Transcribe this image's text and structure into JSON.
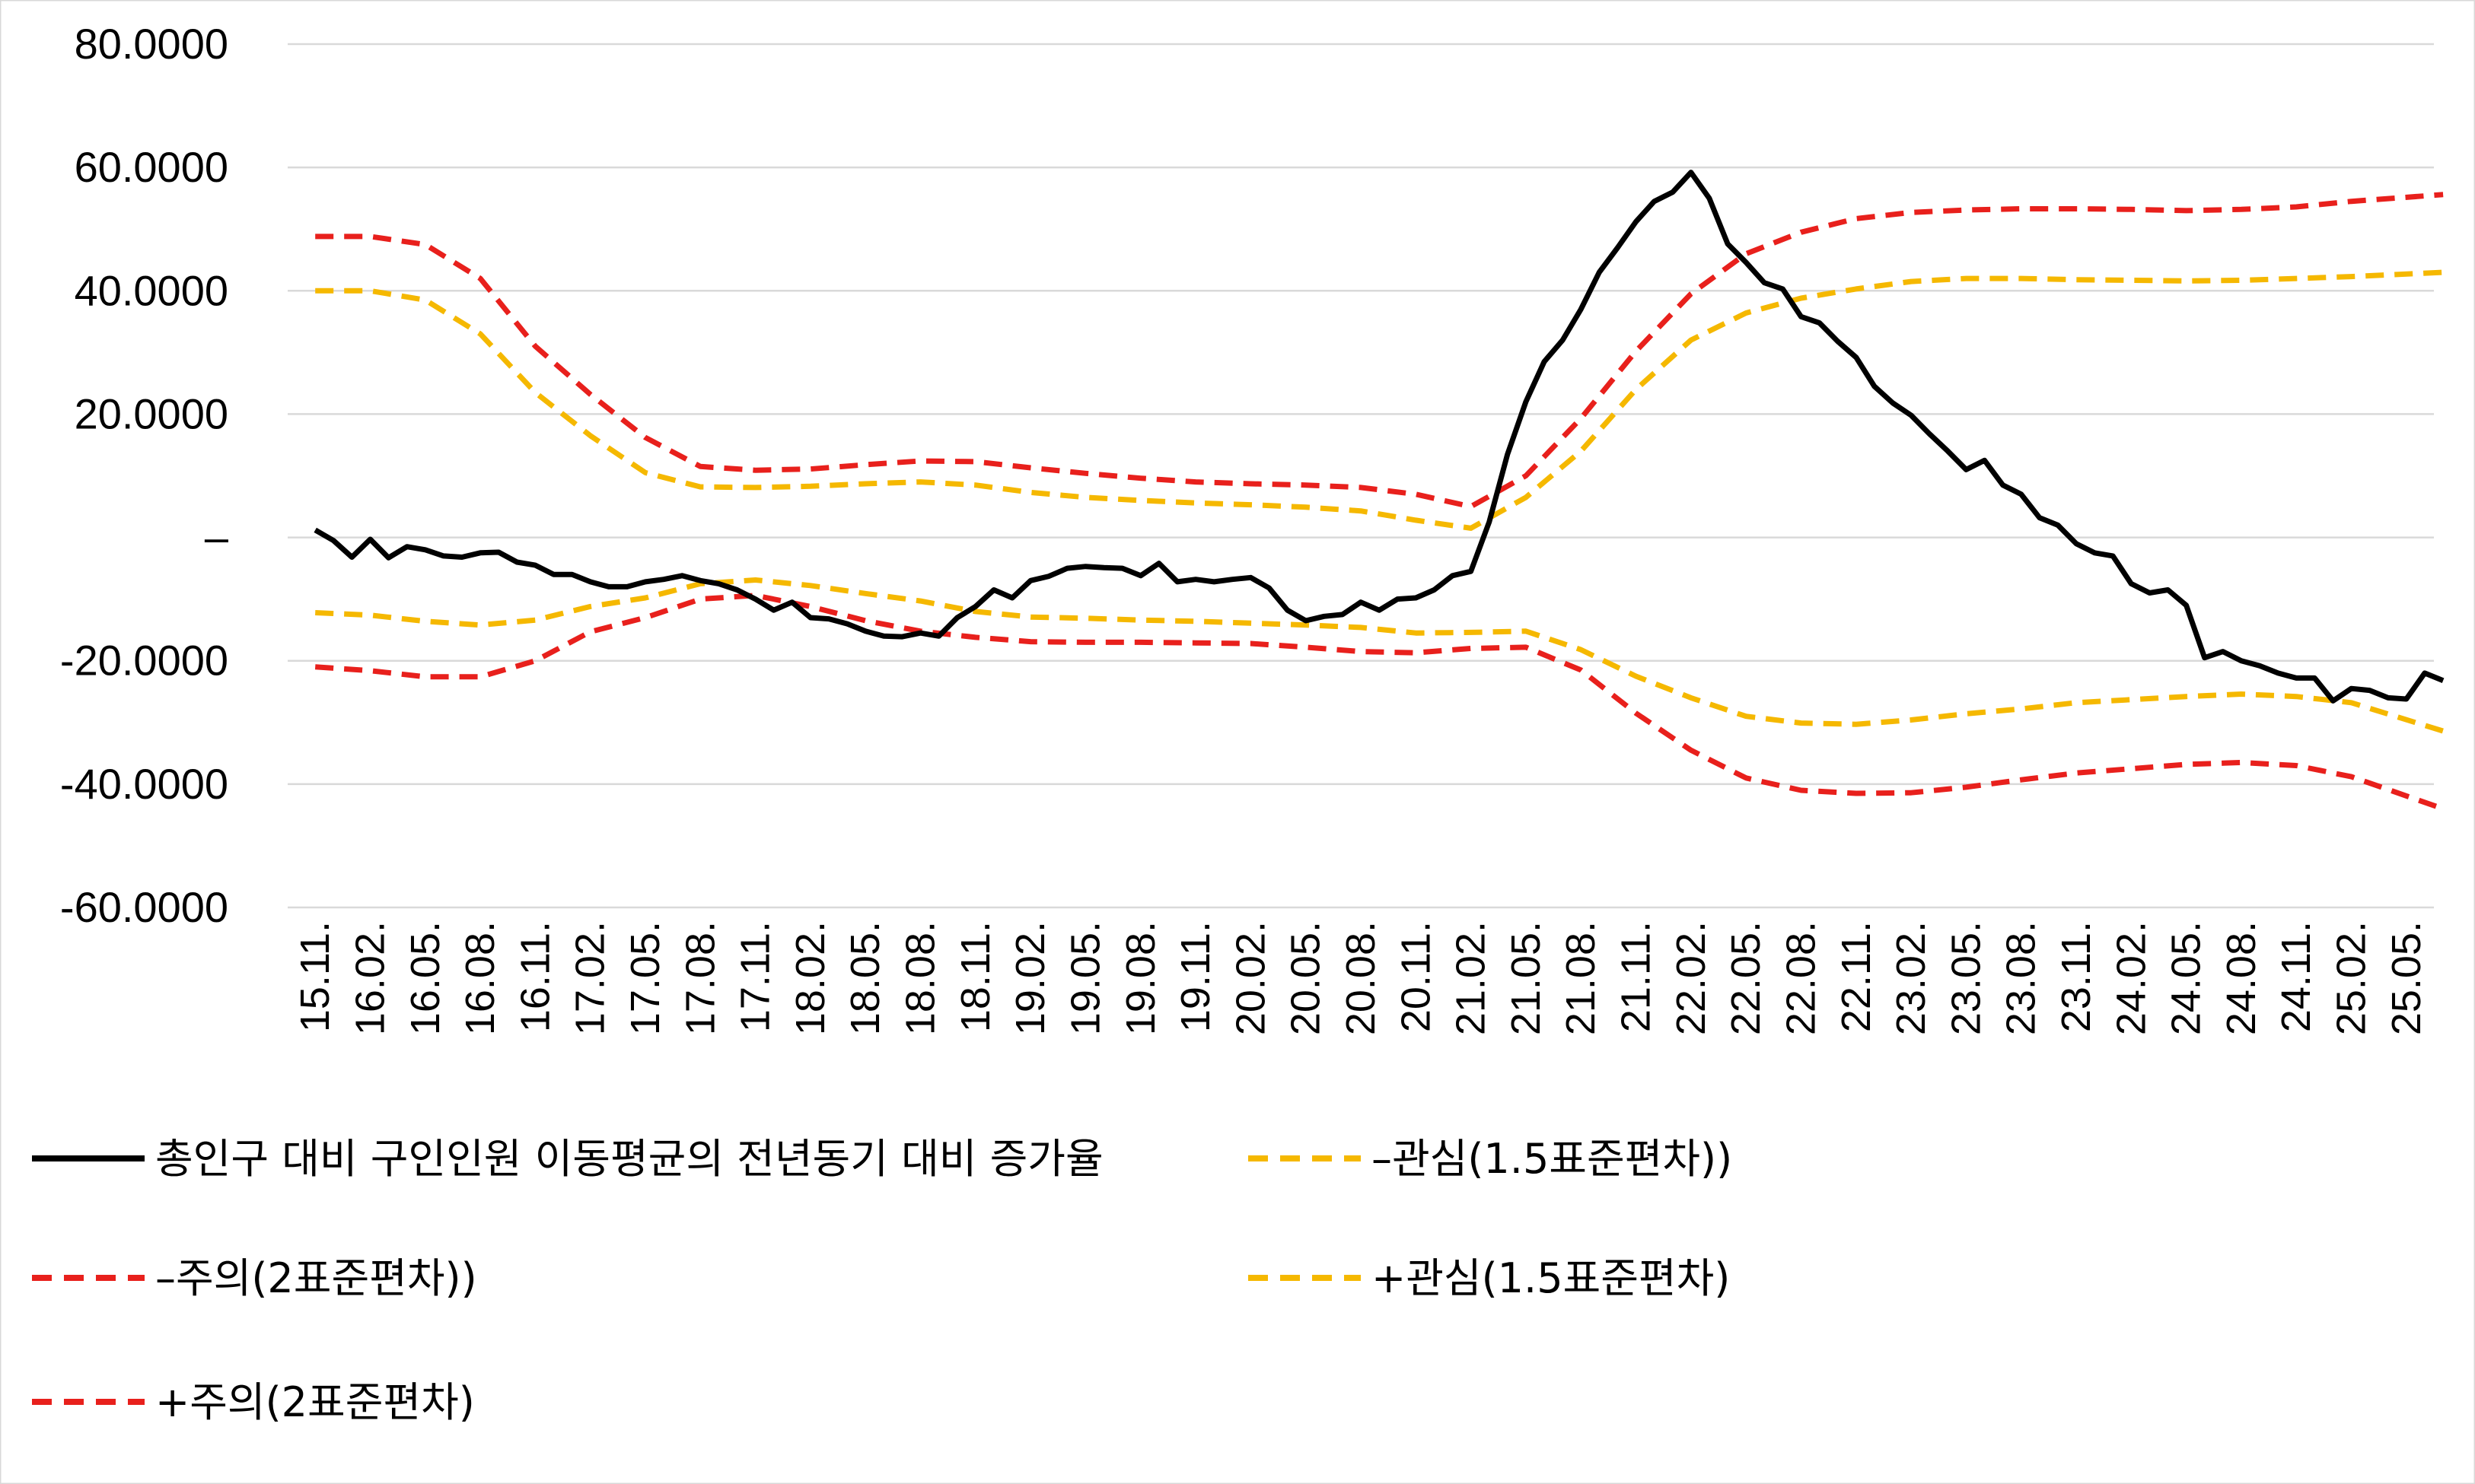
{
  "chart_data": {
    "type": "line",
    "ylim": [
      -60,
      80
    ],
    "yticks": [
      {
        "value": 80,
        "label": "80.0000"
      },
      {
        "value": 60,
        "label": "60.0000"
      },
      {
        "value": 40,
        "label": "40.0000"
      },
      {
        "value": 20,
        "label": "20.0000"
      },
      {
        "value": 0,
        "label": "–"
      },
      {
        "value": -20,
        "label": "-20.0000"
      },
      {
        "value": -40,
        "label": "-40.0000"
      },
      {
        "value": -60,
        "label": "-60.0000"
      }
    ],
    "grid": true,
    "categories": [
      "15.11.",
      "16.02.",
      "16.05.",
      "16.08.",
      "16.11.",
      "17.02.",
      "17.05.",
      "17.08.",
      "17.11.",
      "18.02.",
      "18.05.",
      "18.08.",
      "18.11.",
      "19.02.",
      "19.05.",
      "19.08.",
      "19.11.",
      "20.02.",
      "20.05.",
      "20.08.",
      "20.11.",
      "21.02.",
      "21.05.",
      "21.08.",
      "21.11.",
      "22.02.",
      "22.05.",
      "22.08.",
      "22.11.",
      "23.02.",
      "23.05.",
      "23.08.",
      "23.11.",
      "24.02.",
      "24.05.",
      "24.08.",
      "24.11.",
      "25.02.",
      "25.05."
    ],
    "legend_position": "bottom",
    "series": [
      {
        "name": "총인구 대비 구인인원 이동평균의 전년동기 대비 증가율",
        "color": "#000000",
        "style": "solid",
        "x": [
          0,
          0.333,
          0.667,
          1,
          1.333,
          1.667,
          2,
          2.333,
          2.667,
          3,
          3.333,
          3.667,
          4,
          4.333,
          4.667,
          5,
          5.333,
          5.667,
          6,
          6.333,
          6.667,
          7,
          7.333,
          7.667,
          8,
          8.333,
          8.667,
          9,
          9.333,
          9.667,
          10,
          10.333,
          10.667,
          11,
          11.333,
          11.667,
          12,
          12.333,
          12.667,
          13,
          13.333,
          13.667,
          14,
          14.333,
          14.667,
          15,
          15.333,
          15.667,
          16,
          16.333,
          16.667,
          17,
          17.333,
          17.667,
          18,
          18.333,
          18.667,
          19,
          19.333,
          19.667,
          20,
          20.333,
          20.667,
          21,
          21.333,
          21.667,
          22,
          22.333,
          22.667,
          23,
          23.333,
          23.667,
          24,
          24.333,
          24.667,
          25,
          25.333,
          25.667,
          26,
          26.333,
          26.667,
          27,
          27.333,
          27.667,
          28,
          28.333,
          28.667,
          29,
          29.333,
          29.667,
          30,
          30.333,
          30.667,
          31,
          31.333,
          31.667,
          32,
          32.333,
          32.667,
          33,
          33.333,
          33.667,
          34,
          34.333,
          34.667,
          35,
          35.333,
          35.667,
          36,
          36.333,
          36.667,
          37,
          37.333,
          37.667,
          38,
          38.333,
          38.667
        ],
        "values": [
          1.2,
          -0.5,
          -3.2,
          -0.3,
          -3.3,
          -1.5,
          -2.0,
          -3.0,
          -3.2,
          -2.5,
          -2.4,
          -4.0,
          -4.5,
          -6.0,
          -6.0,
          -7.2,
          -8.0,
          -8.0,
          -7.2,
          -6.8,
          -6.2,
          -7.0,
          -7.5,
          -8.5,
          -10.0,
          -11.8,
          -10.5,
          -13.0,
          -13.2,
          -14.0,
          -15.2,
          -16.0,
          -16.1,
          -15.5,
          -16.0,
          -13.0,
          -11.2,
          -8.5,
          -9.8,
          -7.0,
          -6.3,
          -5.0,
          -4.7,
          -4.9,
          -5.0,
          -6.2,
          -4.2,
          -7.2,
          -6.8,
          -7.2,
          -6.8,
          -6.5,
          -8.2,
          -11.8,
          -13.5,
          -12.8,
          -12.5,
          -10.5,
          -11.8,
          -10.0,
          -9.8,
          -8.5,
          -6.2,
          -5.5,
          2.5,
          13.5,
          22.0,
          28.5,
          32.0,
          37.0,
          43.0,
          47.0,
          51.2,
          54.5,
          56.0,
          59.2,
          55.0,
          47.6,
          44.6,
          41.3,
          40.3,
          35.8,
          34.8,
          31.8,
          29.2,
          24.5,
          21.8,
          19.8,
          16.8,
          14.0,
          11.0,
          12.5,
          8.5,
          7.0,
          3.2,
          2.0,
          -1.0,
          -2.5,
          -3.0,
          -7.5,
          -9.0,
          -8.5,
          -11.0,
          -19.5,
          -18.5,
          -20.0,
          -20.8,
          -22.0,
          -22.8,
          -22.8,
          -26.5,
          -24.5,
          -24.8,
          -26.0,
          -26.2,
          -22.0,
          -23.2
        ]
      },
      {
        "name": "–관심(1.5표준편차))",
        "color": "#F5B800",
        "style": "dashed",
        "x": [
          0,
          1,
          2,
          3,
          4,
          5,
          6,
          7,
          8,
          9,
          10,
          11,
          12,
          13,
          14,
          15,
          16,
          17,
          18,
          19,
          20,
          21,
          22,
          23,
          24,
          25,
          26,
          27,
          28,
          29,
          30,
          31,
          32,
          33,
          34,
          35,
          36,
          37,
          38.667
        ],
        "values": [
          -12.2,
          -12.6,
          -13.6,
          -14.2,
          -13.4,
          -11.2,
          -9.8,
          -7.5,
          -6.9,
          -7.8,
          -9.1,
          -10.3,
          -12.0,
          -12.9,
          -13.1,
          -13.4,
          -13.6,
          -13.9,
          -14.2,
          -14.6,
          -15.5,
          -15.4,
          -15.2,
          -18.2,
          -22.5,
          -26.0,
          -29.0,
          -30.1,
          -30.3,
          -29.6,
          -28.6,
          -27.8,
          -26.8,
          -26.3,
          -25.8,
          -25.4,
          -25.8,
          -26.8,
          -31.4
        ]
      },
      {
        "name": "–주의(2표준편차))",
        "color": "#E8201C",
        "style": "dashed",
        "x": [
          0,
          1,
          2,
          3,
          4,
          5,
          6,
          7,
          8,
          9,
          10,
          11,
          12,
          13,
          14,
          15,
          16,
          17,
          18,
          19,
          20,
          21,
          22,
          23,
          24,
          25,
          26,
          27,
          28,
          29,
          30,
          31,
          32,
          33,
          34,
          35,
          36,
          37,
          38.667
        ],
        "values": [
          -21.0,
          -21.6,
          -22.6,
          -22.6,
          -20.0,
          -15.3,
          -13.0,
          -10.0,
          -9.4,
          -11.2,
          -13.5,
          -15.2,
          -16.2,
          -16.9,
          -17.0,
          -17.0,
          -17.1,
          -17.2,
          -17.8,
          -18.5,
          -18.7,
          -18.0,
          -17.8,
          -21.5,
          -28.5,
          -34.5,
          -39.0,
          -41.0,
          -41.5,
          -41.4,
          -40.5,
          -39.3,
          -38.2,
          -37.5,
          -36.8,
          -36.5,
          -37.0,
          -38.8,
          -44.0
        ]
      },
      {
        "name": "+관심(1.5표준편차)",
        "color": "#F5B800",
        "style": "dashed",
        "x": [
          0,
          1,
          2,
          3,
          4,
          5,
          6,
          7,
          8,
          9,
          10,
          11,
          12,
          13,
          14,
          15,
          16,
          17,
          18,
          19,
          20,
          21,
          22,
          23,
          24,
          25,
          26,
          27,
          28,
          29,
          30,
          31,
          32,
          33,
          34,
          35,
          36,
          37,
          38.667
        ],
        "values": [
          40.0,
          40.0,
          38.5,
          33.0,
          23.5,
          16.5,
          10.5,
          8.2,
          8.1,
          8.3,
          8.7,
          9.0,
          8.5,
          7.3,
          6.5,
          6.0,
          5.6,
          5.3,
          4.9,
          4.3,
          2.8,
          1.5,
          6.5,
          14.0,
          24.0,
          32.0,
          36.4,
          38.8,
          40.3,
          41.5,
          42.0,
          42.0,
          41.8,
          41.7,
          41.6,
          41.7,
          42.0,
          42.3,
          43.0
        ]
      },
      {
        "name": "+주의(2표준편차)",
        "color": "#E8201C",
        "style": "dashed",
        "x": [
          0,
          1,
          2,
          3,
          4,
          5,
          6,
          7,
          8,
          9,
          10,
          11,
          12,
          13,
          14,
          15,
          16,
          17,
          18,
          19,
          20,
          21,
          22,
          23,
          24,
          25,
          26,
          27,
          28,
          29,
          30,
          31,
          32,
          33,
          34,
          35,
          36,
          37,
          38.667
        ],
        "values": [
          48.8,
          48.8,
          47.5,
          42.0,
          31.0,
          23.2,
          16.2,
          11.5,
          10.9,
          11.1,
          11.8,
          12.4,
          12.3,
          11.3,
          10.4,
          9.6,
          9.0,
          8.7,
          8.5,
          8.1,
          7.0,
          5.0,
          10.0,
          19.3,
          30.2,
          39.5,
          46.0,
          49.5,
          51.7,
          52.7,
          53.1,
          53.3,
          53.3,
          53.2,
          53.0,
          53.2,
          53.6,
          54.5,
          55.6
        ]
      }
    ]
  }
}
